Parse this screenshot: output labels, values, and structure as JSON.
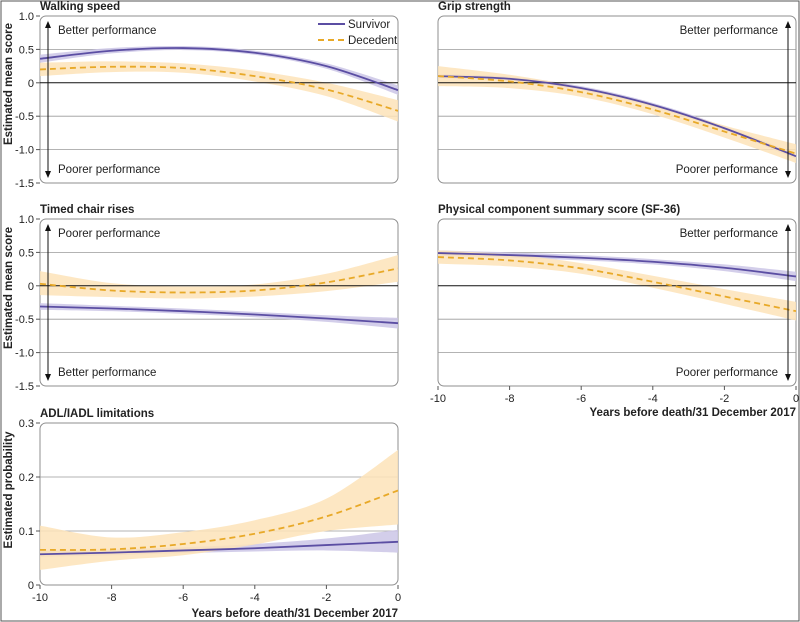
{
  "colors": {
    "survivor": "#5b4ea3",
    "survivor_band": "#cbc6e6",
    "decedent": "#e8a928",
    "decedent_band": "#fde3b8",
    "grid": "#8f8f8f",
    "zero": "#111111"
  },
  "legend": {
    "survivor": "Survivor",
    "decedent": "Decedent"
  },
  "labels": {
    "y_mean": "Estimated mean score",
    "y_prob": "Estimated probability",
    "x": "Years before death/31 December 2017"
  },
  "chart_data": [
    {
      "type": "line",
      "title": "Walking speed",
      "x_range": [
        -10,
        0
      ],
      "y_range": [
        -1.5,
        1.0
      ],
      "y_ticks": [
        "1.0",
        "0.5",
        "0",
        "-0.5",
        "-1.0",
        "-1.5"
      ],
      "y_tick_values": [
        1.0,
        0.5,
        0,
        -0.5,
        -1.0,
        -1.5
      ],
      "annotation_top": "Better performance",
      "annotation_bottom": "Poorer performance",
      "series": [
        {
          "name": "Survivor",
          "x": [
            -10,
            -8,
            -6,
            -4,
            -2,
            0
          ],
          "y": [
            0.36,
            0.48,
            0.52,
            0.45,
            0.25,
            -0.11
          ],
          "lower": [
            0.3,
            0.44,
            0.49,
            0.42,
            0.21,
            -0.18
          ],
          "upper": [
            0.42,
            0.52,
            0.55,
            0.48,
            0.29,
            -0.04
          ]
        },
        {
          "name": "Decedent",
          "x": [
            -10,
            -8,
            -6,
            -4,
            -2,
            0
          ],
          "y": [
            0.2,
            0.24,
            0.22,
            0.1,
            -0.1,
            -0.42
          ],
          "lower": [
            0.1,
            0.16,
            0.15,
            0.02,
            -0.2,
            -0.58
          ],
          "upper": [
            0.3,
            0.32,
            0.29,
            0.18,
            0.0,
            -0.26
          ]
        }
      ]
    },
    {
      "type": "line",
      "title": "Grip strength",
      "x_range": [
        -10,
        0
      ],
      "y_range": [
        -1.5,
        1.0
      ],
      "annotation_top": "Better performance",
      "annotation_bottom": "Poorer performance",
      "series": [
        {
          "name": "Survivor",
          "x": [
            -10,
            -8,
            -6,
            -4,
            -2,
            0
          ],
          "y": [
            0.1,
            0.06,
            -0.08,
            -0.33,
            -0.68,
            -1.1
          ],
          "lower": [
            0.07,
            0.03,
            -0.11,
            -0.36,
            -0.71,
            -1.14
          ],
          "upper": [
            0.13,
            0.09,
            -0.05,
            -0.3,
            -0.65,
            -1.06
          ]
        },
        {
          "name": "Decedent",
          "x": [
            -10,
            -8,
            -6,
            -4,
            -2,
            0
          ],
          "y": [
            0.1,
            0.02,
            -0.14,
            -0.4,
            -0.73,
            -1.06
          ],
          "lower": [
            -0.05,
            -0.08,
            -0.21,
            -0.47,
            -0.82,
            -1.2
          ],
          "upper": [
            0.25,
            0.12,
            -0.07,
            -0.33,
            -0.64,
            -0.92
          ]
        }
      ]
    },
    {
      "type": "line",
      "title": "Timed chair rises",
      "x_range": [
        -10,
        0
      ],
      "y_range": [
        -1.5,
        1.0
      ],
      "y_ticks": [
        "1.0",
        "0.5",
        "0",
        "-0.5",
        "-1.0",
        "-1.5"
      ],
      "y_tick_values": [
        1.0,
        0.5,
        0,
        -0.5,
        -1.0,
        -1.5
      ],
      "annotation_top": "Poorer performance",
      "annotation_bottom": "Better performance",
      "series": [
        {
          "name": "Survivor",
          "x": [
            -10,
            -8,
            -6,
            -4,
            -2,
            0
          ],
          "y": [
            -0.31,
            -0.34,
            -0.38,
            -0.43,
            -0.49,
            -0.56
          ],
          "lower": [
            -0.36,
            -0.38,
            -0.42,
            -0.47,
            -0.54,
            -0.64
          ],
          "upper": [
            -0.26,
            -0.3,
            -0.34,
            -0.39,
            -0.44,
            -0.48
          ]
        },
        {
          "name": "Decedent",
          "x": [
            -10,
            -8,
            -6,
            -4,
            -2,
            0
          ],
          "y": [
            0.03,
            -0.07,
            -0.1,
            -0.07,
            0.05,
            0.26
          ],
          "lower": [
            -0.14,
            -0.17,
            -0.19,
            -0.16,
            -0.08,
            0.06
          ],
          "upper": [
            0.22,
            0.04,
            -0.01,
            0.02,
            0.18,
            0.46
          ]
        }
      ]
    },
    {
      "type": "line",
      "title": "Physical component summary score (SF-36)",
      "x_range": [
        -10,
        0
      ],
      "y_range": [
        -1.5,
        1.0
      ],
      "x_ticks": [
        "-10",
        "-8",
        "-6",
        "-4",
        "-2",
        "0"
      ],
      "x_tick_values": [
        -10,
        -8,
        -6,
        -4,
        -2,
        0
      ],
      "xlabel": "Years before death/31 December 2017",
      "annotation_top": "Better performance",
      "annotation_bottom": "Poorer performance",
      "series": [
        {
          "name": "Survivor",
          "x": [
            -10,
            -8,
            -6,
            -4,
            -2,
            0
          ],
          "y": [
            0.49,
            0.46,
            0.42,
            0.36,
            0.27,
            0.14
          ],
          "lower": [
            0.45,
            0.42,
            0.38,
            0.32,
            0.22,
            0.07
          ],
          "upper": [
            0.53,
            0.5,
            0.46,
            0.4,
            0.32,
            0.21
          ]
        },
        {
          "name": "Decedent",
          "x": [
            -10,
            -8,
            -6,
            -4,
            -2,
            0
          ],
          "y": [
            0.43,
            0.38,
            0.26,
            0.06,
            -0.16,
            -0.38
          ],
          "lower": [
            0.33,
            0.29,
            0.18,
            -0.03,
            -0.27,
            -0.52
          ],
          "upper": [
            0.53,
            0.47,
            0.34,
            0.15,
            -0.05,
            -0.24
          ]
        }
      ]
    },
    {
      "type": "line",
      "title": "ADL/IADL limitations",
      "x_range": [
        -10,
        0
      ],
      "y_range": [
        0,
        0.3
      ],
      "y_ticks": [
        "0.3",
        "0.2",
        "0.1",
        "0"
      ],
      "y_tick_values": [
        0.3,
        0.2,
        0.1,
        0
      ],
      "x_ticks": [
        "-10",
        "-8",
        "-6",
        "-4",
        "-2",
        "0"
      ],
      "x_tick_values": [
        -10,
        -8,
        -6,
        -4,
        -2,
        0
      ],
      "xlabel": "Years before death/31 December 2017",
      "series": [
        {
          "name": "Survivor",
          "x": [
            -10,
            -8,
            -6,
            -4,
            -2,
            0
          ],
          "y": [
            0.057,
            0.06,
            0.064,
            0.068,
            0.074,
            0.08
          ],
          "lower": [
            0.052,
            0.055,
            0.059,
            0.062,
            0.064,
            0.06
          ],
          "upper": [
            0.064,
            0.066,
            0.07,
            0.076,
            0.086,
            0.102
          ]
        },
        {
          "name": "Decedent",
          "x": [
            -10,
            -8,
            -6,
            -4,
            -2,
            0
          ],
          "y": [
            0.065,
            0.066,
            0.076,
            0.095,
            0.127,
            0.175
          ],
          "lower": [
            0.028,
            0.045,
            0.055,
            0.075,
            0.1,
            0.112
          ],
          "upper": [
            0.11,
            0.088,
            0.098,
            0.12,
            0.16,
            0.25
          ]
        }
      ]
    }
  ]
}
